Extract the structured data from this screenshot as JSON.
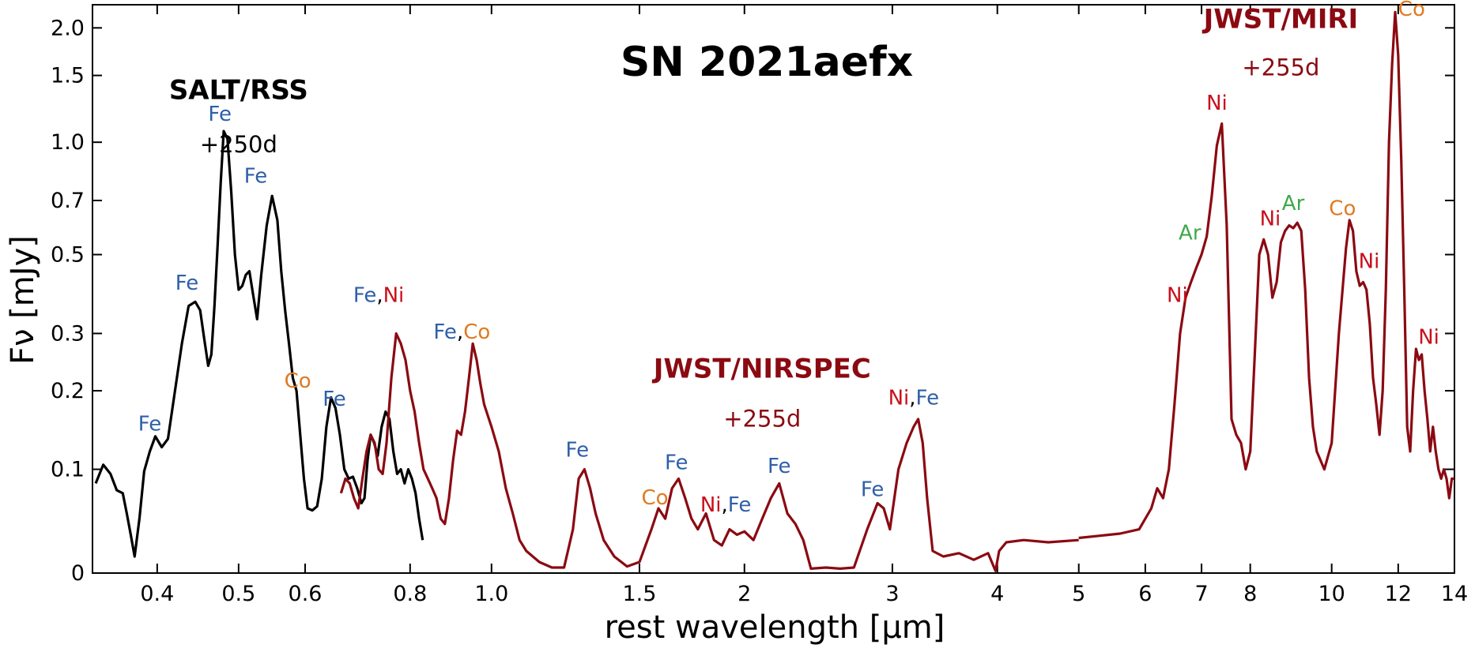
{
  "colors": {
    "salt": "#000000",
    "jwst": "#8b0a12",
    "Fe": "#2f5fa8",
    "Ni": "#c8101c",
    "Co": "#e07a22",
    "Ar": "#3fa84a",
    "sep": "#000000"
  },
  "chart_data": {
    "type": "line",
    "title": "SN 2021aefx",
    "xlabel": "rest wavelength [μm]",
    "ylabel": "Fν [mJy]",
    "xscale": "log",
    "xlim": [
      0.335,
      14.0
    ],
    "ylim": [
      0,
      2.3
    ],
    "x_ticks": [
      0.4,
      0.5,
      0.6,
      0.8,
      1.0,
      1.5,
      2,
      3,
      4,
      5,
      6,
      7,
      8,
      10,
      12,
      14
    ],
    "x_tick_labels": [
      "0.4",
      "0.5",
      "0.6",
      "0.8",
      "1.0",
      "1.5",
      "2",
      "3",
      "4",
      "5",
      "6",
      "7",
      "8",
      "10",
      "12",
      "14"
    ],
    "y_ticks": [
      0,
      0.1,
      0.2,
      0.3,
      0.5,
      0.7,
      1.0,
      1.5,
      2.0
    ],
    "y_tick_labels": [
      "0",
      "0.1",
      "0.2",
      "0.3",
      "0.5",
      "0.7",
      "1.0",
      "1.5",
      "2.0"
    ],
    "instruments": [
      {
        "name": "SALT/RSS",
        "epoch": "+250d",
        "color": "#000000",
        "anchor": [
          0.5,
          1.3
        ],
        "epoch_anchor": [
          0.5,
          0.94
        ]
      },
      {
        "name": "JWST/NIRSPEC",
        "epoch": "+255d",
        "color": "#8b0a12",
        "anchor": [
          2.1,
          0.22
        ],
        "epoch_anchor": [
          2.1,
          0.15
        ]
      },
      {
        "name": "JWST/MIRI",
        "epoch": "+255d",
        "color": "#8b0a12",
        "anchor": [
          8.7,
          2.0
        ],
        "epoch_anchor": [
          8.7,
          1.5
        ]
      }
    ],
    "series": [
      {
        "name": "SALT/RSS",
        "color": "#000000",
        "x": [
          0.338,
          0.345,
          0.352,
          0.358,
          0.364,
          0.368,
          0.372,
          0.376,
          0.381,
          0.386,
          0.392,
          0.398,
          0.405,
          0.412,
          0.42,
          0.428,
          0.436,
          0.444,
          0.45,
          0.455,
          0.46,
          0.464,
          0.468,
          0.472,
          0.476,
          0.48,
          0.485,
          0.49,
          0.495,
          0.5,
          0.505,
          0.51,
          0.515,
          0.52,
          0.526,
          0.532,
          0.54,
          0.548,
          0.556,
          0.562,
          0.568,
          0.574,
          0.58,
          0.586,
          0.592,
          0.598,
          0.604,
          0.612,
          0.62,
          0.628,
          0.636,
          0.644,
          0.652,
          0.66,
          0.668,
          0.676,
          0.684,
          0.692,
          0.7,
          0.706,
          0.712,
          0.718,
          0.725,
          0.732,
          0.74,
          0.748,
          0.756,
          0.764,
          0.772,
          0.78,
          0.788,
          0.796,
          0.804,
          0.812,
          0.82,
          0.828
        ],
        "y": [
          0.085,
          0.105,
          0.095,
          0.078,
          0.075,
          0.055,
          0.035,
          0.015,
          0.05,
          0.098,
          0.12,
          0.138,
          0.125,
          0.135,
          0.2,
          0.28,
          0.36,
          0.37,
          0.35,
          0.29,
          0.24,
          0.26,
          0.36,
          0.53,
          0.78,
          1.07,
          1.02,
          0.74,
          0.5,
          0.4,
          0.41,
          0.44,
          0.45,
          0.39,
          0.33,
          0.44,
          0.6,
          0.72,
          0.62,
          0.45,
          0.35,
          0.28,
          0.22,
          0.2,
          0.14,
          0.09,
          0.06,
          0.058,
          0.062,
          0.09,
          0.15,
          0.19,
          0.175,
          0.14,
          0.1,
          0.09,
          0.092,
          0.08,
          0.065,
          0.07,
          0.11,
          0.14,
          0.13,
          0.115,
          0.15,
          0.17,
          0.16,
          0.12,
          0.095,
          0.1,
          0.085,
          0.1,
          0.09,
          0.075,
          0.05,
          0.03
        ]
      },
      {
        "name": "JWST/NIRSPEC",
        "color": "#8b0a12",
        "x": [
          0.662,
          0.67,
          0.678,
          0.686,
          0.694,
          0.702,
          0.71,
          0.718,
          0.726,
          0.734,
          0.742,
          0.75,
          0.76,
          0.77,
          0.78,
          0.79,
          0.8,
          0.81,
          0.82,
          0.83,
          0.84,
          0.85,
          0.86,
          0.87,
          0.88,
          0.89,
          0.9,
          0.91,
          0.92,
          0.93,
          0.94,
          0.95,
          0.96,
          0.97,
          0.98,
          1.0,
          1.02,
          1.04,
          1.06,
          1.08,
          1.1,
          1.14,
          1.18,
          1.22,
          1.25,
          1.27,
          1.29,
          1.31,
          1.33,
          1.36,
          1.4,
          1.45,
          1.5,
          1.55,
          1.58,
          1.61,
          1.64,
          1.67,
          1.7,
          1.73,
          1.76,
          1.8,
          1.84,
          1.88,
          1.92,
          1.96,
          2.0,
          2.05,
          2.1,
          2.15,
          2.2,
          2.25,
          2.3,
          2.35,
          2.4,
          2.5,
          2.6,
          2.7,
          2.8,
          2.88,
          2.93,
          2.98,
          3.05,
          3.12,
          3.18,
          3.22,
          3.26,
          3.3,
          3.35,
          3.45,
          3.6,
          3.75,
          3.9,
          3.98,
          4.02,
          4.1,
          4.3,
          4.6,
          5.0
        ],
        "y": [
          0.075,
          0.09,
          0.085,
          0.07,
          0.06,
          0.09,
          0.12,
          0.14,
          0.13,
          0.1,
          0.095,
          0.13,
          0.22,
          0.3,
          0.28,
          0.25,
          0.2,
          0.17,
          0.13,
          0.1,
          0.09,
          0.08,
          0.07,
          0.05,
          0.045,
          0.07,
          0.11,
          0.145,
          0.14,
          0.17,
          0.22,
          0.28,
          0.25,
          0.21,
          0.18,
          0.15,
          0.12,
          0.08,
          0.055,
          0.03,
          0.02,
          0.01,
          0.005,
          0.005,
          0.04,
          0.09,
          0.1,
          0.08,
          0.055,
          0.03,
          0.015,
          0.006,
          0.01,
          0.04,
          0.06,
          0.05,
          0.08,
          0.09,
          0.07,
          0.05,
          0.04,
          0.055,
          0.03,
          0.025,
          0.04,
          0.035,
          0.038,
          0.03,
          0.05,
          0.07,
          0.085,
          0.055,
          0.045,
          0.03,
          0.004,
          0.005,
          0.004,
          0.005,
          0.04,
          0.065,
          0.06,
          0.04,
          0.1,
          0.13,
          0.15,
          0.16,
          0.13,
          0.07,
          0.02,
          0.015,
          0.018,
          0.012,
          0.018,
          0.002,
          0.02,
          0.028,
          0.03,
          0.028,
          0.03
        ]
      },
      {
        "name": "JWST/MIRI",
        "color": "#8b0a12",
        "x": [
          5.0,
          5.3,
          5.6,
          5.9,
          6.1,
          6.2,
          6.3,
          6.4,
          6.5,
          6.6,
          6.7,
          6.8,
          6.9,
          7.0,
          7.1,
          7.2,
          7.3,
          7.4,
          7.5,
          7.6,
          7.7,
          7.8,
          7.9,
          8.0,
          8.1,
          8.2,
          8.3,
          8.4,
          8.5,
          8.6,
          8.7,
          8.8,
          8.9,
          9.0,
          9.1,
          9.2,
          9.3,
          9.4,
          9.5,
          9.6,
          9.8,
          10.0,
          10.2,
          10.4,
          10.5,
          10.6,
          10.7,
          10.8,
          10.9,
          11.0,
          11.1,
          11.2,
          11.3,
          11.4,
          11.5,
          11.6,
          11.7,
          11.8,
          11.9,
          12.0,
          12.1,
          12.2,
          12.3,
          12.4,
          12.5,
          12.6,
          12.7,
          12.8,
          12.9,
          13.0,
          13.1,
          13.2,
          13.3,
          13.4,
          13.5,
          13.6,
          13.7,
          13.8,
          13.9,
          14.0
        ],
        "y": [
          0.032,
          0.034,
          0.036,
          0.04,
          0.06,
          0.08,
          0.07,
          0.1,
          0.18,
          0.3,
          0.38,
          0.42,
          0.46,
          0.5,
          0.56,
          0.72,
          0.98,
          1.12,
          0.6,
          0.16,
          0.14,
          0.13,
          0.1,
          0.12,
          0.26,
          0.5,
          0.55,
          0.5,
          0.38,
          0.42,
          0.54,
          0.58,
          0.6,
          0.59,
          0.61,
          0.58,
          0.4,
          0.22,
          0.15,
          0.12,
          0.1,
          0.13,
          0.3,
          0.52,
          0.62,
          0.58,
          0.45,
          0.41,
          0.42,
          0.4,
          0.32,
          0.22,
          0.18,
          0.14,
          0.2,
          0.4,
          1.0,
          1.6,
          2.2,
          1.7,
          0.9,
          0.4,
          0.15,
          0.12,
          0.2,
          0.27,
          0.25,
          0.26,
          0.2,
          0.16,
          0.12,
          0.15,
          0.12,
          0.1,
          0.09,
          0.1,
          0.09,
          0.07,
          0.09,
          0.09
        ]
      }
    ],
    "annotations": [
      {
        "x": 0.392,
        "y": 0.145,
        "parts": [
          [
            "Fe",
            "Fe"
          ]
        ]
      },
      {
        "x": 0.434,
        "y": 0.4,
        "parts": [
          [
            "Fe",
            "Fe"
          ]
        ]
      },
      {
        "x": 0.475,
        "y": 1.14,
        "parts": [
          [
            "Fe",
            "Fe"
          ]
        ]
      },
      {
        "x": 0.524,
        "y": 0.78,
        "parts": [
          [
            "Fe",
            "Fe"
          ]
        ]
      },
      {
        "x": 0.588,
        "y": 0.205,
        "parts": [
          [
            "Co",
            "Co"
          ]
        ]
      },
      {
        "x": 0.65,
        "y": 0.178,
        "parts": [
          [
            "Fe",
            "Fe"
          ]
        ]
      },
      {
        "x": 0.734,
        "y": 0.37,
        "parts": [
          [
            "Fe",
            "Fe"
          ],
          [
            ",",
            "sep"
          ],
          [
            "Ni",
            "Ni"
          ]
        ]
      },
      {
        "x": 0.922,
        "y": 0.29,
        "parts": [
          [
            "Fe",
            "Fe"
          ],
          [
            ",",
            "sep"
          ],
          [
            "Co",
            "Co"
          ]
        ]
      },
      {
        "x": 1.265,
        "y": 0.114,
        "parts": [
          [
            "Fe",
            "Fe"
          ]
        ]
      },
      {
        "x": 1.565,
        "y": 0.064,
        "parts": [
          [
            "Co",
            "Co"
          ]
        ]
      },
      {
        "x": 1.66,
        "y": 0.1,
        "parts": [
          [
            "Fe",
            "Fe"
          ]
        ]
      },
      {
        "x": 1.9,
        "y": 0.057,
        "parts": [
          [
            "Ni",
            "Ni"
          ],
          [
            ",",
            "sep"
          ],
          [
            "Fe",
            "Fe"
          ]
        ]
      },
      {
        "x": 2.2,
        "y": 0.096,
        "parts": [
          [
            "Fe",
            "Fe"
          ]
        ]
      },
      {
        "x": 2.84,
        "y": 0.072,
        "parts": [
          [
            "Fe",
            "Fe"
          ]
        ]
      },
      {
        "x": 3.18,
        "y": 0.18,
        "parts": [
          [
            "Ni",
            "Ni"
          ],
          [
            ",",
            "sep"
          ],
          [
            "Fe",
            "Fe"
          ]
        ]
      },
      {
        "x": 6.55,
        "y": 0.37,
        "parts": [
          [
            "Ni",
            "Ni"
          ]
        ]
      },
      {
        "x": 6.78,
        "y": 0.55,
        "parts": [
          [
            "Ar",
            "Ar"
          ]
        ]
      },
      {
        "x": 7.3,
        "y": 1.22,
        "parts": [
          [
            "Ni",
            "Ni"
          ]
        ]
      },
      {
        "x": 8.45,
        "y": 0.6,
        "parts": [
          [
            "Ni",
            "Ni"
          ]
        ]
      },
      {
        "x": 9.0,
        "y": 0.66,
        "parts": [
          [
            "Ar",
            "Ar"
          ]
        ]
      },
      {
        "x": 10.3,
        "y": 0.64,
        "parts": [
          [
            "Co",
            "Co"
          ]
        ]
      },
      {
        "x": 11.08,
        "y": 0.46,
        "parts": [
          [
            "Ni",
            "Ni"
          ]
        ]
      },
      {
        "x": 12.45,
        "y": 2.15,
        "parts": [
          [
            "Co",
            "Co"
          ]
        ]
      },
      {
        "x": 13.05,
        "y": 0.28,
        "parts": [
          [
            "Ni",
            "Ni"
          ]
        ]
      }
    ]
  }
}
